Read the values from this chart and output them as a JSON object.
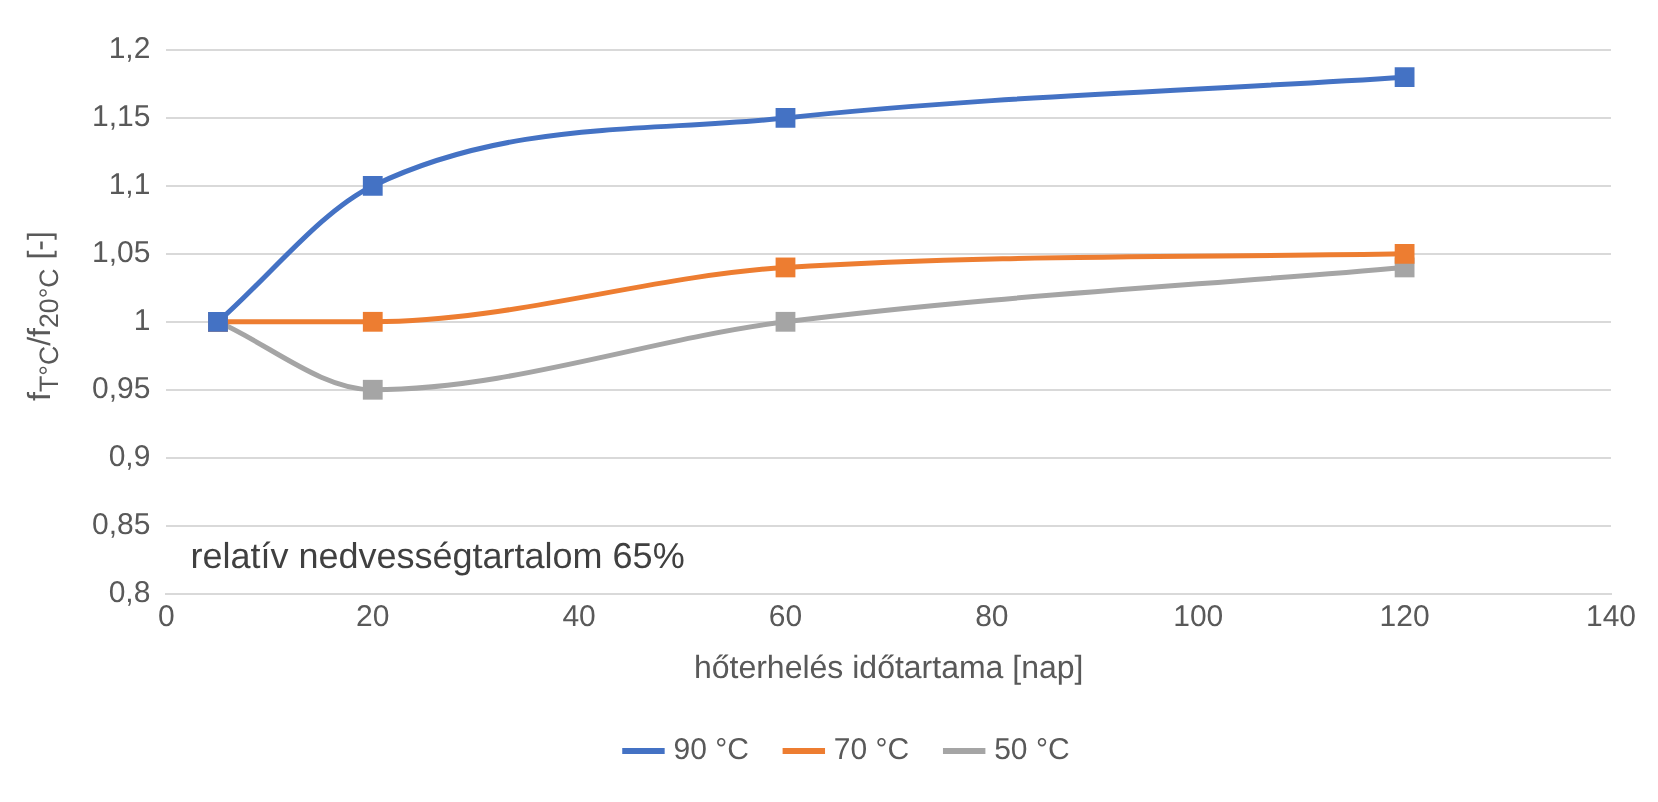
{
  "chart_data": {
    "type": "line",
    "xlabel": "hőterhelés időtartama [nap]",
    "ylabel": "f$_{T°C}$/f$_{20°C}$ [-]",
    "x": [
      5,
      20,
      60,
      120
    ],
    "series": [
      {
        "name": "90 °C",
        "color": "#4472c4",
        "values": [
          1,
          1.1,
          1.15,
          1.18
        ]
      },
      {
        "name": "70 °C",
        "color": "#ed7d31",
        "values": [
          1,
          1,
          1.04,
          1.05
        ]
      },
      {
        "name": "50 °C",
        "color": "#a5a5a5",
        "values": [
          1,
          0.95,
          1,
          1.04
        ]
      }
    ],
    "xlim": [
      0,
      140
    ],
    "xticks": [
      0,
      20,
      40,
      60,
      80,
      100,
      120,
      140
    ],
    "ylim": [
      0.8,
      1.2
    ],
    "yticks": [
      {
        "value": 0.8,
        "label": "0,8"
      },
      {
        "value": 0.85,
        "label": "0,85"
      },
      {
        "value": 0.9,
        "label": "0,9"
      },
      {
        "value": 0.95,
        "label": "0,95"
      },
      {
        "value": 1,
        "label": "1"
      },
      {
        "value": 1.05,
        "label": "1,05"
      },
      {
        "value": 1.1,
        "label": "1,1"
      },
      {
        "value": 1.15,
        "label": "1,15"
      },
      {
        "value": 1.2,
        "label": "1,2"
      }
    ],
    "grid": "y",
    "legend": "bottom",
    "marker": "square",
    "line_style": "solid",
    "annotations": [
      "relatív nedvességtartalom 65%"
    ]
  }
}
